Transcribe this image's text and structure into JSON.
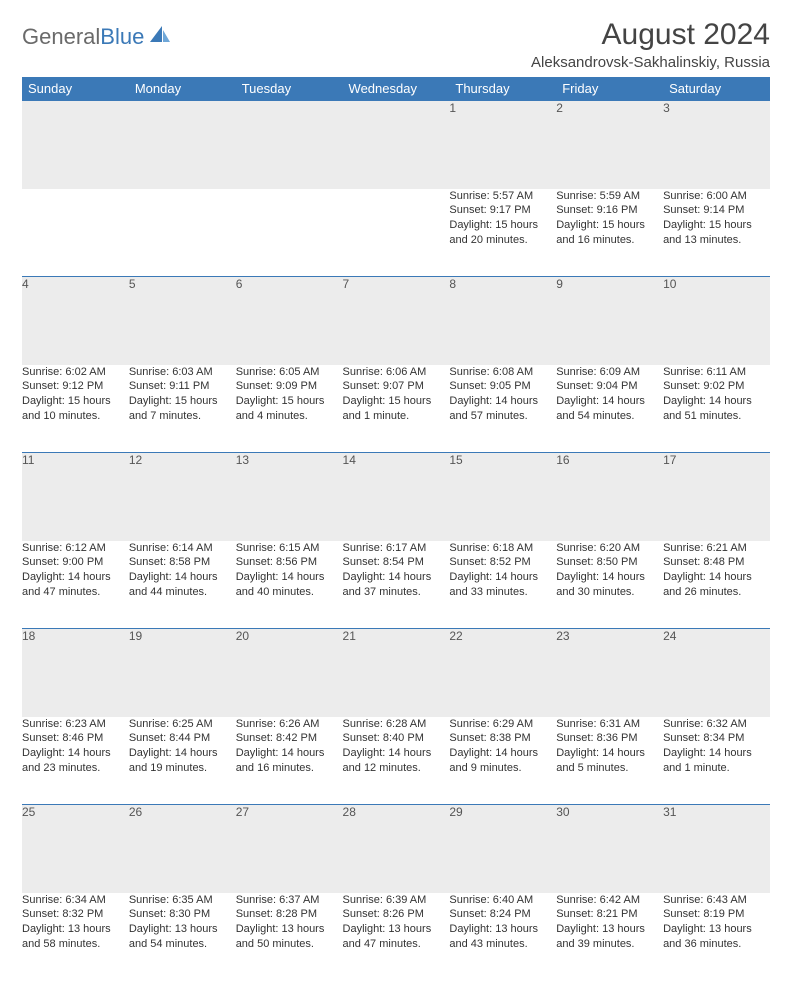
{
  "brand": {
    "part1": "General",
    "part2": "Blue"
  },
  "title": "August 2024",
  "location": "Aleksandrovsk-Sakhalinskiy, Russia",
  "colors": {
    "header_bg": "#3b79b7",
    "header_text": "#ffffff",
    "daynum_bg": "#ececec",
    "row_border": "#3b79b7",
    "body_text": "#333333",
    "logo_gray": "#6a6a6a",
    "logo_blue": "#3b79b7",
    "page_bg": "#ffffff"
  },
  "typography": {
    "title_fontsize": 30,
    "location_fontsize": 15,
    "weekday_fontsize": 13,
    "daynum_fontsize": 12,
    "cell_fontsize": 11
  },
  "layout": {
    "cols": 7,
    "rows": 5,
    "col_width_pct": 14.28
  },
  "weekdays": [
    "Sunday",
    "Monday",
    "Tuesday",
    "Wednesday",
    "Thursday",
    "Friday",
    "Saturday"
  ],
  "weeks": [
    [
      null,
      null,
      null,
      null,
      {
        "n": "1",
        "sr": "5:57 AM",
        "ss": "9:17 PM",
        "dl": "15 hours and 20 minutes."
      },
      {
        "n": "2",
        "sr": "5:59 AM",
        "ss": "9:16 PM",
        "dl": "15 hours and 16 minutes."
      },
      {
        "n": "3",
        "sr": "6:00 AM",
        "ss": "9:14 PM",
        "dl": "15 hours and 13 minutes."
      }
    ],
    [
      {
        "n": "4",
        "sr": "6:02 AM",
        "ss": "9:12 PM",
        "dl": "15 hours and 10 minutes."
      },
      {
        "n": "5",
        "sr": "6:03 AM",
        "ss": "9:11 PM",
        "dl": "15 hours and 7 minutes."
      },
      {
        "n": "6",
        "sr": "6:05 AM",
        "ss": "9:09 PM",
        "dl": "15 hours and 4 minutes."
      },
      {
        "n": "7",
        "sr": "6:06 AM",
        "ss": "9:07 PM",
        "dl": "15 hours and 1 minute."
      },
      {
        "n": "8",
        "sr": "6:08 AM",
        "ss": "9:05 PM",
        "dl": "14 hours and 57 minutes."
      },
      {
        "n": "9",
        "sr": "6:09 AM",
        "ss": "9:04 PM",
        "dl": "14 hours and 54 minutes."
      },
      {
        "n": "10",
        "sr": "6:11 AM",
        "ss": "9:02 PM",
        "dl": "14 hours and 51 minutes."
      }
    ],
    [
      {
        "n": "11",
        "sr": "6:12 AM",
        "ss": "9:00 PM",
        "dl": "14 hours and 47 minutes."
      },
      {
        "n": "12",
        "sr": "6:14 AM",
        "ss": "8:58 PM",
        "dl": "14 hours and 44 minutes."
      },
      {
        "n": "13",
        "sr": "6:15 AM",
        "ss": "8:56 PM",
        "dl": "14 hours and 40 minutes."
      },
      {
        "n": "14",
        "sr": "6:17 AM",
        "ss": "8:54 PM",
        "dl": "14 hours and 37 minutes."
      },
      {
        "n": "15",
        "sr": "6:18 AM",
        "ss": "8:52 PM",
        "dl": "14 hours and 33 minutes."
      },
      {
        "n": "16",
        "sr": "6:20 AM",
        "ss": "8:50 PM",
        "dl": "14 hours and 30 minutes."
      },
      {
        "n": "17",
        "sr": "6:21 AM",
        "ss": "8:48 PM",
        "dl": "14 hours and 26 minutes."
      }
    ],
    [
      {
        "n": "18",
        "sr": "6:23 AM",
        "ss": "8:46 PM",
        "dl": "14 hours and 23 minutes."
      },
      {
        "n": "19",
        "sr": "6:25 AM",
        "ss": "8:44 PM",
        "dl": "14 hours and 19 minutes."
      },
      {
        "n": "20",
        "sr": "6:26 AM",
        "ss": "8:42 PM",
        "dl": "14 hours and 16 minutes."
      },
      {
        "n": "21",
        "sr": "6:28 AM",
        "ss": "8:40 PM",
        "dl": "14 hours and 12 minutes."
      },
      {
        "n": "22",
        "sr": "6:29 AM",
        "ss": "8:38 PM",
        "dl": "14 hours and 9 minutes."
      },
      {
        "n": "23",
        "sr": "6:31 AM",
        "ss": "8:36 PM",
        "dl": "14 hours and 5 minutes."
      },
      {
        "n": "24",
        "sr": "6:32 AM",
        "ss": "8:34 PM",
        "dl": "14 hours and 1 minute."
      }
    ],
    [
      {
        "n": "25",
        "sr": "6:34 AM",
        "ss": "8:32 PM",
        "dl": "13 hours and 58 minutes."
      },
      {
        "n": "26",
        "sr": "6:35 AM",
        "ss": "8:30 PM",
        "dl": "13 hours and 54 minutes."
      },
      {
        "n": "27",
        "sr": "6:37 AM",
        "ss": "8:28 PM",
        "dl": "13 hours and 50 minutes."
      },
      {
        "n": "28",
        "sr": "6:39 AM",
        "ss": "8:26 PM",
        "dl": "13 hours and 47 minutes."
      },
      {
        "n": "29",
        "sr": "6:40 AM",
        "ss": "8:24 PM",
        "dl": "13 hours and 43 minutes."
      },
      {
        "n": "30",
        "sr": "6:42 AM",
        "ss": "8:21 PM",
        "dl": "13 hours and 39 minutes."
      },
      {
        "n": "31",
        "sr": "6:43 AM",
        "ss": "8:19 PM",
        "dl": "13 hours and 36 minutes."
      }
    ]
  ],
  "labels": {
    "sunrise": "Sunrise:",
    "sunset": "Sunset:",
    "daylight": "Daylight:"
  }
}
